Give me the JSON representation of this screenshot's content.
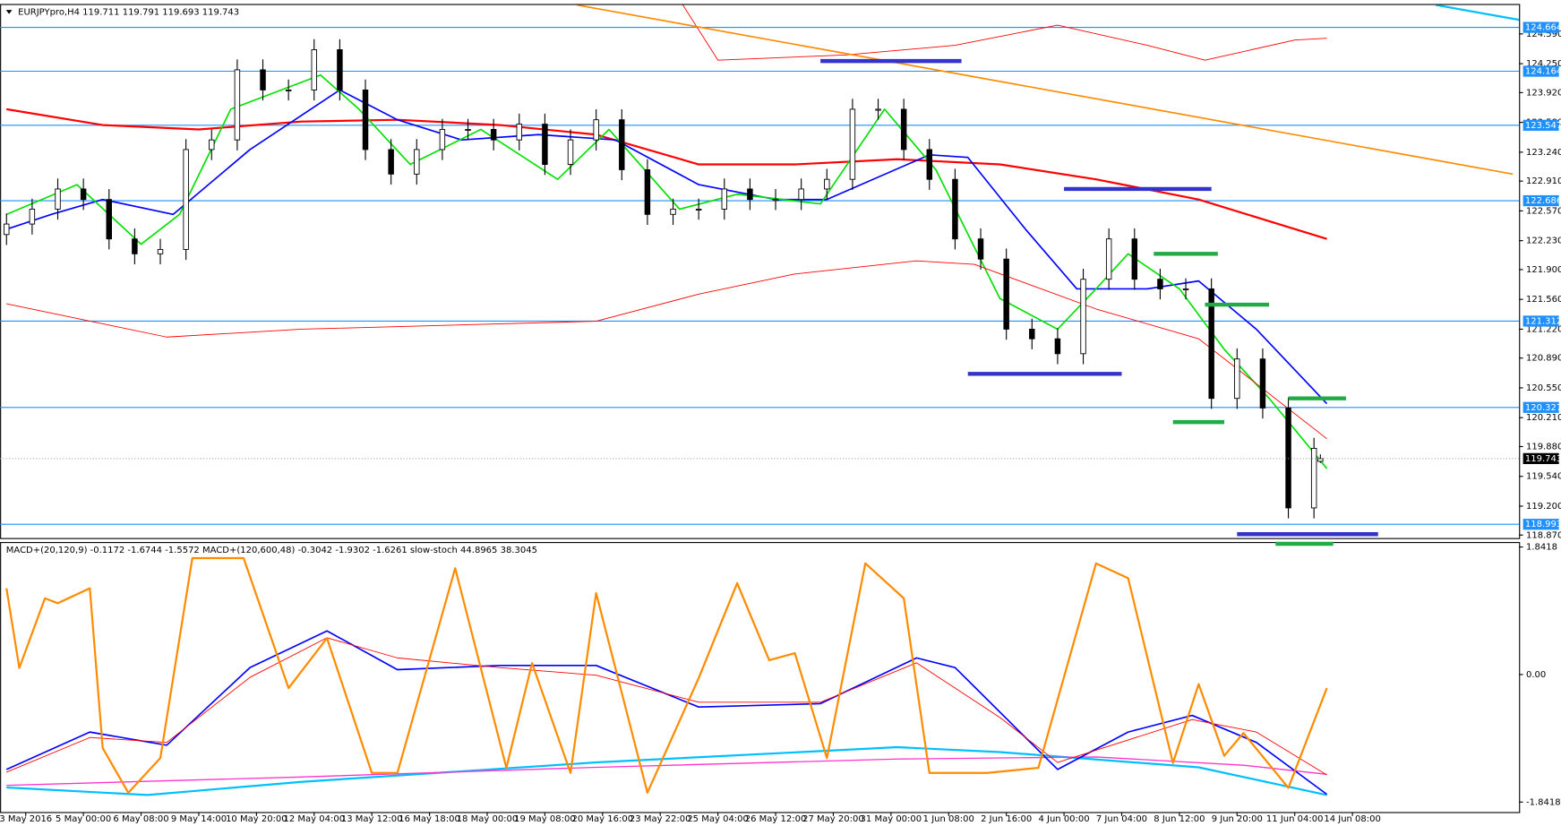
{
  "chart_data": [
    {
      "type": "candlestick",
      "title": "EURJPYpro,H4  119.711 119.791 119.693 119.743",
      "x": [
        0,
        4,
        8,
        12,
        16,
        20,
        24,
        28,
        32,
        36,
        40,
        44,
        48,
        52,
        56,
        60,
        64,
        68,
        72,
        76,
        80,
        84,
        88,
        92,
        96,
        100,
        104,
        108,
        112,
        116,
        120,
        124,
        128,
        132,
        136,
        140,
        144,
        148,
        152,
        156,
        160,
        164,
        168,
        172,
        176,
        180,
        184,
        188,
        192,
        196,
        200,
        204,
        205
      ],
      "open": [
        122.3,
        122.42,
        122.59,
        122.82,
        122.7,
        122.25,
        122.08,
        122.13,
        123.27,
        123.38,
        124.18,
        123.95,
        123.95,
        124.41,
        123.95,
        123.27,
        122.99,
        123.27,
        123.5,
        123.5,
        123.38,
        123.56,
        123.1,
        123.38,
        123.61,
        123.04,
        122.53,
        122.59,
        122.59,
        122.82,
        122.7,
        122.7,
        122.82,
        122.93,
        123.73,
        123.73,
        123.27,
        122.93,
        122.25,
        122.02,
        121.22,
        121.11,
        120.94,
        121.79,
        122.25,
        121.79,
        121.68,
        121.68,
        120.43,
        120.88,
        120.32,
        119.18,
        119.711
      ],
      "high": [
        122.54,
        122.71,
        122.94,
        122.94,
        122.82,
        122.37,
        122.25,
        123.39,
        123.5,
        124.3,
        124.3,
        124.07,
        124.53,
        124.53,
        124.07,
        123.39,
        123.39,
        123.62,
        123.62,
        123.62,
        123.68,
        123.68,
        123.5,
        123.73,
        123.73,
        123.16,
        122.71,
        122.71,
        122.94,
        122.94,
        122.82,
        122.94,
        123.05,
        123.85,
        123.85,
        123.85,
        123.39,
        123.05,
        122.37,
        122.14,
        121.34,
        121.23,
        121.91,
        122.37,
        122.37,
        121.91,
        121.8,
        121.8,
        121.0,
        121.0,
        120.44,
        119.98,
        119.791
      ],
      "low": [
        122.18,
        122.3,
        122.47,
        122.58,
        122.13,
        121.96,
        121.96,
        122.01,
        123.15,
        123.26,
        123.83,
        123.83,
        123.83,
        123.83,
        123.15,
        122.87,
        122.87,
        123.15,
        123.38,
        123.26,
        123.26,
        122.98,
        122.98,
        123.26,
        122.92,
        122.41,
        122.41,
        122.47,
        122.47,
        122.58,
        122.58,
        122.58,
        122.7,
        122.81,
        123.61,
        123.15,
        122.81,
        122.13,
        121.9,
        121.1,
        120.99,
        120.82,
        120.82,
        121.67,
        121.67,
        121.56,
        121.56,
        120.31,
        120.31,
        120.2,
        119.06,
        119.06,
        119.693
      ],
      "close": [
        122.42,
        122.59,
        122.82,
        122.7,
        122.25,
        122.08,
        122.13,
        123.27,
        123.38,
        124.18,
        123.95,
        123.95,
        124.41,
        123.95,
        123.27,
        122.99,
        123.27,
        123.5,
        123.5,
        123.38,
        123.56,
        123.1,
        123.38,
        123.61,
        123.04,
        122.53,
        122.59,
        122.59,
        122.82,
        122.7,
        122.7,
        122.82,
        122.93,
        123.73,
        123.73,
        123.27,
        122.93,
        122.25,
        122.02,
        121.22,
        121.11,
        120.94,
        121.79,
        122.25,
        121.79,
        121.68,
        121.68,
        120.43,
        120.88,
        120.32,
        119.18,
        119.86,
        119.743
      ],
      "up_color": "#ffffff",
      "down_color": "#000000",
      "series": [
        {
          "color": "#ff0000",
          "width": 2,
          "x": [
            0,
            15,
            30,
            46,
            61,
            77,
            92,
            108,
            123,
            139,
            155,
            170,
            186,
            206
          ],
          "values": [
            123.73,
            123.55,
            123.5,
            123.59,
            123.61,
            123.55,
            123.44,
            123.1,
            123.1,
            123.16,
            123.1,
            122.93,
            122.7,
            122.25
          ]
        },
        {
          "color": "#0000ff",
          "width": 1.5,
          "x": [
            0,
            7,
            15,
            26,
            38,
            52,
            61,
            71,
            83,
            95,
            108,
            120,
            128,
            144,
            150,
            159,
            167,
            178,
            186,
            195,
            206
          ],
          "values": [
            122.36,
            122.53,
            122.7,
            122.53,
            123.27,
            123.95,
            123.61,
            123.38,
            123.44,
            123.38,
            122.87,
            122.7,
            122.7,
            123.21,
            123.18,
            122.36,
            121.68,
            121.68,
            121.77,
            121.22,
            120.37
          ]
        },
        {
          "color": "#00e000",
          "width": 1.5,
          "x": [
            0,
            11,
            21,
            27,
            35,
            49,
            55,
            63,
            74,
            86,
            94,
            105,
            114,
            127,
            137,
            145,
            155,
            164,
            170,
            175,
            183,
            190,
            197,
            206
          ],
          "values": [
            122.53,
            122.87,
            122.19,
            122.53,
            123.73,
            124.12,
            123.73,
            123.1,
            123.5,
            122.93,
            123.5,
            122.59,
            122.76,
            122.65,
            123.73,
            123.04,
            121.57,
            121.22,
            121.68,
            122.08,
            121.68,
            120.99,
            120.43,
            119.63
          ]
        },
        {
          "color": "#ff0000",
          "width": 0.8,
          "x": [
            105,
            111,
            131,
            148,
            164,
            178,
            187,
            201,
            206
          ],
          "values": [
            124.98,
            124.29,
            124.35,
            124.46,
            124.69,
            124.46,
            124.29,
            124.52,
            124.54
          ]
        },
        {
          "color": "#ff0000",
          "width": 0.8,
          "x": [
            0,
            25,
            46,
            92,
            108,
            123,
            142,
            151,
            170,
            186,
            206
          ],
          "values": [
            121.51,
            121.13,
            121.22,
            121.31,
            121.62,
            121.85,
            122.0,
            121.96,
            121.45,
            121.11,
            119.97
          ]
        },
        {
          "color": "#ff8c00",
          "width": 1.5,
          "x": [
            89,
            235
          ],
          "values": [
            124.92,
            122.99
          ]
        },
        {
          "color": "#00bfff",
          "width": 2,
          "x": [
            223,
            236
          ],
          "values": [
            124.92,
            124.75
          ]
        }
      ],
      "levels": [
        124.664,
        124.164,
        123.547,
        122.686,
        121.312,
        120.327,
        118.993
      ],
      "level_color": "#1e90ff",
      "segments": [
        {
          "color": "#3333cc",
          "x": [
            127,
            149
          ],
          "value": 124.28
        },
        {
          "color": "#3333cc",
          "x": [
            165,
            188
          ],
          "value": 122.82
        },
        {
          "color": "#3333cc",
          "x": [
            150,
            174
          ],
          "value": 120.71
        },
        {
          "color": "#3333cc",
          "x": [
            192,
            214
          ],
          "value": 118.88
        },
        {
          "color": "#22aa44",
          "x": [
            179,
            189
          ],
          "value": 122.08
        },
        {
          "color": "#22aa44",
          "x": [
            187,
            197
          ],
          "value": 121.5
        },
        {
          "color": "#22aa44",
          "x": [
            200,
            209
          ],
          "value": 120.43
        },
        {
          "color": "#22aa44",
          "x": [
            182,
            190
          ],
          "value": 120.16
        },
        {
          "color": "#22aa44",
          "x": [
            198,
            207
          ],
          "value": 118.77
        }
      ],
      "xlim": [
        -1,
        236
      ],
      "ylim": [
        118.836,
        124.92
      ],
      "yticks": [
        {
          "value": 124.59,
          "label": "124.590"
        },
        {
          "value": 124.25,
          "label": "124.250"
        },
        {
          "value": 123.92,
          "label": "123.920"
        },
        {
          "value": 123.58,
          "label": "123.580"
        },
        {
          "value": 123.24,
          "label": "123.240"
        },
        {
          "value": 122.91,
          "label": "122.910"
        },
        {
          "value": 122.57,
          "label": "122.570"
        },
        {
          "value": 122.23,
          "label": "122.230"
        },
        {
          "value": 121.9,
          "label": "121.900"
        },
        {
          "value": 121.56,
          "label": "121.560"
        },
        {
          "value": 121.22,
          "label": "121.220"
        },
        {
          "value": 120.89,
          "label": "120.890"
        },
        {
          "value": 120.55,
          "label": "120.550"
        },
        {
          "value": 120.21,
          "label": "120.210"
        },
        {
          "value": 119.88,
          "label": "119.880"
        },
        {
          "value": 119.54,
          "label": "119.540"
        },
        {
          "value": 119.2,
          "label": "119.200"
        },
        {
          "value": 118.87,
          "label": "118.870"
        }
      ]
    },
    {
      "type": "line",
      "title": "MACD+(20,120,9) -0.1172 -1.6744 -1.5572  MACD+(120,600,48) -0.3042 -1.9302 -1.6261  slow-stoch 44.8965 38.3045",
      "series": [
        {
          "color": "#00bfff",
          "width": 2,
          "x": [
            0,
            22,
            46,
            92,
            139,
            155,
            186,
            206
          ],
          "values": [
            -1.63,
            -1.74,
            -1.55,
            -1.27,
            -1.05,
            -1.12,
            -1.34,
            -1.74
          ]
        },
        {
          "color": "#ff33cc",
          "width": 1.2,
          "x": [
            0,
            46,
            92,
            139,
            170,
            193,
            206
          ],
          "values": [
            -1.6,
            -1.48,
            -1.34,
            -1.22,
            -1.19,
            -1.31,
            -1.44
          ]
        },
        {
          "color": "#0000ff",
          "width": 1.5,
          "x": [
            0,
            13,
            25,
            38,
            50,
            61,
            77,
            92,
            108,
            127,
            142,
            148,
            164,
            175,
            185,
            195,
            206
          ],
          "values": [
            -1.37,
            -0.83,
            -1.02,
            0.1,
            0.63,
            0.07,
            0.13,
            0.13,
            -0.47,
            -0.42,
            0.24,
            0.1,
            -1.37,
            -0.83,
            -0.59,
            -0.98,
            -1.73
          ]
        },
        {
          "color": "#ff0000",
          "width": 0.8,
          "x": [
            0,
            13,
            25,
            38,
            50,
            61,
            77,
            92,
            108,
            127,
            142,
            155,
            164,
            185,
            195,
            206
          ],
          "values": [
            -1.41,
            -0.91,
            -0.98,
            -0.04,
            0.53,
            0.24,
            0.1,
            -0.01,
            -0.4,
            -0.4,
            0.17,
            -0.62,
            -1.27,
            -0.65,
            -0.83,
            -1.45
          ]
        },
        {
          "color": "#ff8c00",
          "width": 2,
          "axis": "y2",
          "x": [
            0,
            2,
            6,
            8,
            13,
            15,
            19,
            24,
            29,
            37,
            44,
            50,
            57,
            61,
            70,
            78,
            82,
            88,
            92,
            100,
            108,
            114,
            119,
            123,
            128,
            134,
            140,
            144,
            153,
            161,
            170,
            175,
            182,
            186,
            190,
            193,
            200,
            206
          ],
          "values": [
            86.5,
            53.9,
            82.4,
            80.4,
            86.5,
            21.2,
            2.9,
            17.1,
            98.8,
            98.8,
            45.7,
            66.1,
            11.0,
            11.0,
            94.7,
            13.1,
            55.9,
            11.0,
            84.5,
            2.9,
            49.8,
            88.6,
            57.1,
            60.0,
            17.1,
            96.7,
            82.4,
            11.0,
            11.0,
            13.1,
            96.7,
            90.6,
            15.1,
            47.3,
            18.0,
            27.3,
            4.9,
            45.7
          ]
        }
      ],
      "xlim": [
        -1,
        236
      ],
      "ylim": [
        -1.986,
        1.899
      ],
      "yticks": [
        1.8418,
        {
          "value": 0,
          "label": "0.00"
        },
        -1.8418
      ],
      "y2lim": [
        -5,
        105
      ],
      "xticks": [
        {
          "value": 3,
          "label": "3 May 2016"
        },
        {
          "value": 12,
          "label": "5 May 00:00"
        },
        {
          "value": 21,
          "label": "6 May 08:00"
        },
        {
          "value": 30,
          "label": "9 May 14:00"
        },
        {
          "value": 39,
          "label": "10 May 20:00"
        },
        {
          "value": 48,
          "label": "12 May 04:00"
        },
        {
          "value": 57,
          "label": "13 May 12:00"
        },
        {
          "value": 66,
          "label": "16 May 18:00"
        },
        {
          "value": 75,
          "label": "18 May 00:00"
        },
        {
          "value": 84,
          "label": "19 May 08:00"
        },
        {
          "value": 93,
          "label": "20 May 16:00"
        },
        {
          "value": 102,
          "label": "23 May 22:00"
        },
        {
          "value": 111,
          "label": "25 May 04:00"
        },
        {
          "value": 120,
          "label": "26 May 12:00"
        },
        {
          "value": 129,
          "label": "27 May 20:00"
        },
        {
          "value": 138,
          "label": "31 May 00:00"
        },
        {
          "value": 147,
          "label": "1 Jun 08:00"
        },
        {
          "value": 156,
          "label": "2 Jun 16:00"
        },
        {
          "value": 165,
          "label": "4 Jun 00:00"
        },
        {
          "value": 174,
          "label": "7 Jun 04:00"
        },
        {
          "value": 183,
          "label": "8 Jun 12:00"
        },
        {
          "value": 192,
          "label": "9 Jun 20:00"
        },
        {
          "value": 201,
          "label": "11 Jun 04:00"
        },
        {
          "value": 210,
          "label": "14 Jun 08:00"
        }
      ]
    }
  ]
}
